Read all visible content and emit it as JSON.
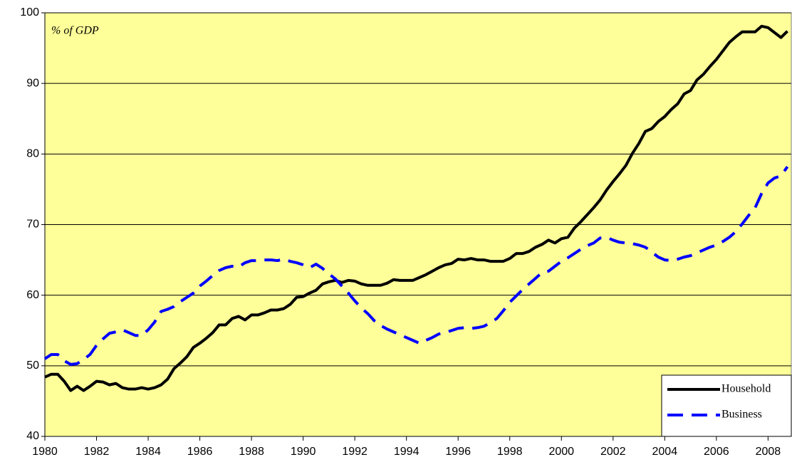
{
  "chart_data": {
    "type": "line",
    "annotation": "% of GDP",
    "x": [
      1980,
      1980.25,
      1980.5,
      1980.75,
      1981,
      1981.25,
      1981.5,
      1981.75,
      1982,
      1982.25,
      1982.5,
      1982.75,
      1983,
      1983.25,
      1983.5,
      1983.75,
      1984,
      1984.25,
      1984.5,
      1984.75,
      1985,
      1985.25,
      1985.5,
      1985.75,
      1986,
      1986.25,
      1986.5,
      1986.75,
      1987,
      1987.25,
      1987.5,
      1987.75,
      1988,
      1988.25,
      1988.5,
      1988.75,
      1989,
      1989.25,
      1989.5,
      1989.75,
      1990,
      1990.25,
      1990.5,
      1990.75,
      1991,
      1991.25,
      1991.5,
      1991.75,
      1992,
      1992.25,
      1992.5,
      1992.75,
      1993,
      1993.25,
      1993.5,
      1993.75,
      1994,
      1994.25,
      1994.5,
      1994.75,
      1995,
      1995.25,
      1995.5,
      1995.75,
      1996,
      1996.25,
      1996.5,
      1996.75,
      1997,
      1997.25,
      1997.5,
      1997.75,
      1998,
      1998.25,
      1998.5,
      1998.75,
      1999,
      1999.25,
      1999.5,
      1999.75,
      2000,
      2000.25,
      2000.5,
      2000.75,
      2001,
      2001.25,
      2001.5,
      2001.75,
      2002,
      2002.25,
      2002.5,
      2002.75,
      2003,
      2003.25,
      2003.5,
      2003.75,
      2004,
      2004.25,
      2004.5,
      2004.75,
      2005,
      2005.25,
      2005.5,
      2005.75,
      2006,
      2006.25,
      2006.5,
      2006.75,
      2007,
      2007.25,
      2007.5,
      2007.75,
      2008,
      2008.25,
      2008.5,
      2008.75
    ],
    "series": [
      {
        "name": "Household",
        "color": "#000000",
        "dash": "solid",
        "values": [
          48.4,
          48.8,
          48.8,
          47.8,
          46.5,
          47.1,
          46.5,
          47.1,
          47.8,
          47.7,
          47.3,
          47.5,
          46.9,
          46.7,
          46.7,
          46.9,
          46.7,
          46.9,
          47.3,
          48.1,
          49.6,
          50.4,
          51.3,
          52.6,
          53.2,
          53.9,
          54.7,
          55.8,
          55.8,
          56.7,
          57.0,
          56.5,
          57.2,
          57.2,
          57.5,
          57.9,
          57.9,
          58.1,
          58.7,
          59.7,
          59.8,
          60.3,
          60.7,
          61.6,
          61.9,
          62.1,
          61.8,
          62.1,
          62.0,
          61.6,
          61.4,
          61.4,
          61.4,
          61.7,
          62.2,
          62.1,
          62.1,
          62.1,
          62.5,
          62.9,
          63.4,
          63.9,
          64.3,
          64.5,
          65.1,
          65.0,
          65.2,
          65.0,
          65.0,
          64.8,
          64.8,
          64.8,
          65.2,
          65.9,
          65.9,
          66.2,
          66.8,
          67.2,
          67.8,
          67.4,
          68.0,
          68.2,
          69.5,
          70.4,
          71.4,
          72.4,
          73.5,
          74.9,
          76.1,
          77.2,
          78.4,
          80.1,
          81.5,
          83.2,
          83.6,
          84.6,
          85.3,
          86.3,
          87.1,
          88.5,
          89.0,
          90.5,
          91.3,
          92.4,
          93.4,
          94.6,
          95.8,
          96.6,
          97.3,
          97.3,
          97.3,
          98.1,
          97.9,
          97.2,
          96.5,
          97.4
        ]
      },
      {
        "name": "Business",
        "color": "#0000ff",
        "dash": "dashed",
        "values": [
          51.0,
          51.6,
          51.6,
          50.7,
          50.2,
          50.3,
          50.9,
          51.6,
          52.9,
          53.8,
          54.6,
          54.8,
          55.1,
          54.7,
          54.3,
          54.3,
          55.1,
          56.2,
          57.7,
          58.0,
          58.4,
          59.1,
          59.7,
          60.3,
          61.3,
          62.0,
          62.8,
          63.5,
          63.9,
          64.1,
          64.0,
          64.6,
          64.9,
          64.9,
          65.0,
          65.0,
          64.9,
          65.1,
          64.8,
          64.6,
          64.3,
          63.9,
          64.4,
          63.8,
          63.0,
          62.3,
          61.3,
          60.3,
          59.2,
          58.2,
          57.4,
          56.4,
          55.7,
          55.2,
          54.8,
          54.4,
          54.0,
          53.6,
          53.2,
          53.6,
          54.0,
          54.5,
          54.7,
          55.0,
          55.3,
          55.4,
          55.3,
          55.4,
          55.6,
          56.1,
          56.7,
          57.8,
          59.0,
          59.9,
          60.8,
          61.6,
          62.4,
          63.2,
          63.4,
          64.1,
          64.8,
          65.3,
          65.9,
          66.5,
          67.0,
          67.4,
          68.1,
          68.2,
          67.8,
          67.5,
          67.4,
          67.3,
          67.1,
          66.8,
          66.1,
          65.4,
          65.0,
          64.9,
          65.1,
          65.4,
          65.6,
          66.0,
          66.4,
          66.8,
          67.1,
          67.6,
          68.2,
          69.0,
          70.1,
          71.3,
          72.4,
          74.4,
          75.9,
          76.6,
          76.9,
          78.2
        ]
      }
    ],
    "xlim": [
      1980,
      2008.9
    ],
    "xticks": [
      1980,
      1982,
      1984,
      1986,
      1988,
      1990,
      1992,
      1994,
      1996,
      1998,
      2000,
      2002,
      2004,
      2006,
      2008
    ],
    "ylim": [
      40,
      100
    ],
    "yticks": [
      40,
      50,
      60,
      70,
      80,
      90,
      100
    ],
    "grid": true,
    "background": "#ffff99",
    "legend": "bottom-right"
  }
}
